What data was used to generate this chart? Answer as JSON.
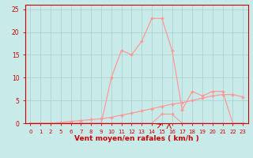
{
  "x_labels": [
    "0",
    "1",
    "2",
    "5",
    "6",
    "7",
    "8",
    "9",
    "10",
    "11",
    "12",
    "13",
    "14",
    "15",
    "16",
    "17",
    "18",
    "19",
    "20",
    "21",
    "22",
    "23"
  ],
  "x_indices": [
    0,
    1,
    2,
    3,
    4,
    5,
    6,
    7,
    8,
    9,
    10,
    11,
    12,
    13,
    14,
    15,
    16,
    17,
    18,
    19,
    20,
    21
  ],
  "gust_values": [
    0,
    0,
    0,
    0,
    0,
    0,
    0,
    0,
    10,
    16,
    15,
    18,
    23,
    23,
    16,
    3,
    7,
    6,
    7,
    7,
    0,
    0
  ],
  "mean_values": [
    0,
    0,
    0,
    0.2,
    0.4,
    0.6,
    0.8,
    1.0,
    1.3,
    1.8,
    2.2,
    2.7,
    3.2,
    3.7,
    4.2,
    4.5,
    5.0,
    5.5,
    6.0,
    6.3,
    6.3,
    5.8
  ],
  "bottom_values": [
    0,
    0,
    0,
    0,
    0,
    0,
    0,
    0,
    0,
    0,
    0,
    0,
    0,
    2,
    2,
    0,
    0,
    0,
    0,
    0,
    0,
    0
  ],
  "line_color": "#FF9999",
  "bg_color": "#C8EAE8",
  "grid_color": "#AACCCC",
  "axis_color": "#CC0000",
  "xlabel": "Vent moyen/en rafales ( km/h )",
  "ylim": [
    0,
    26
  ],
  "yticks": [
    0,
    5,
    10,
    15,
    20,
    25
  ],
  "ylabel_fontsize": 5.5,
  "xlabel_fontsize": 6.5,
  "tick_fontsize": 5.0
}
